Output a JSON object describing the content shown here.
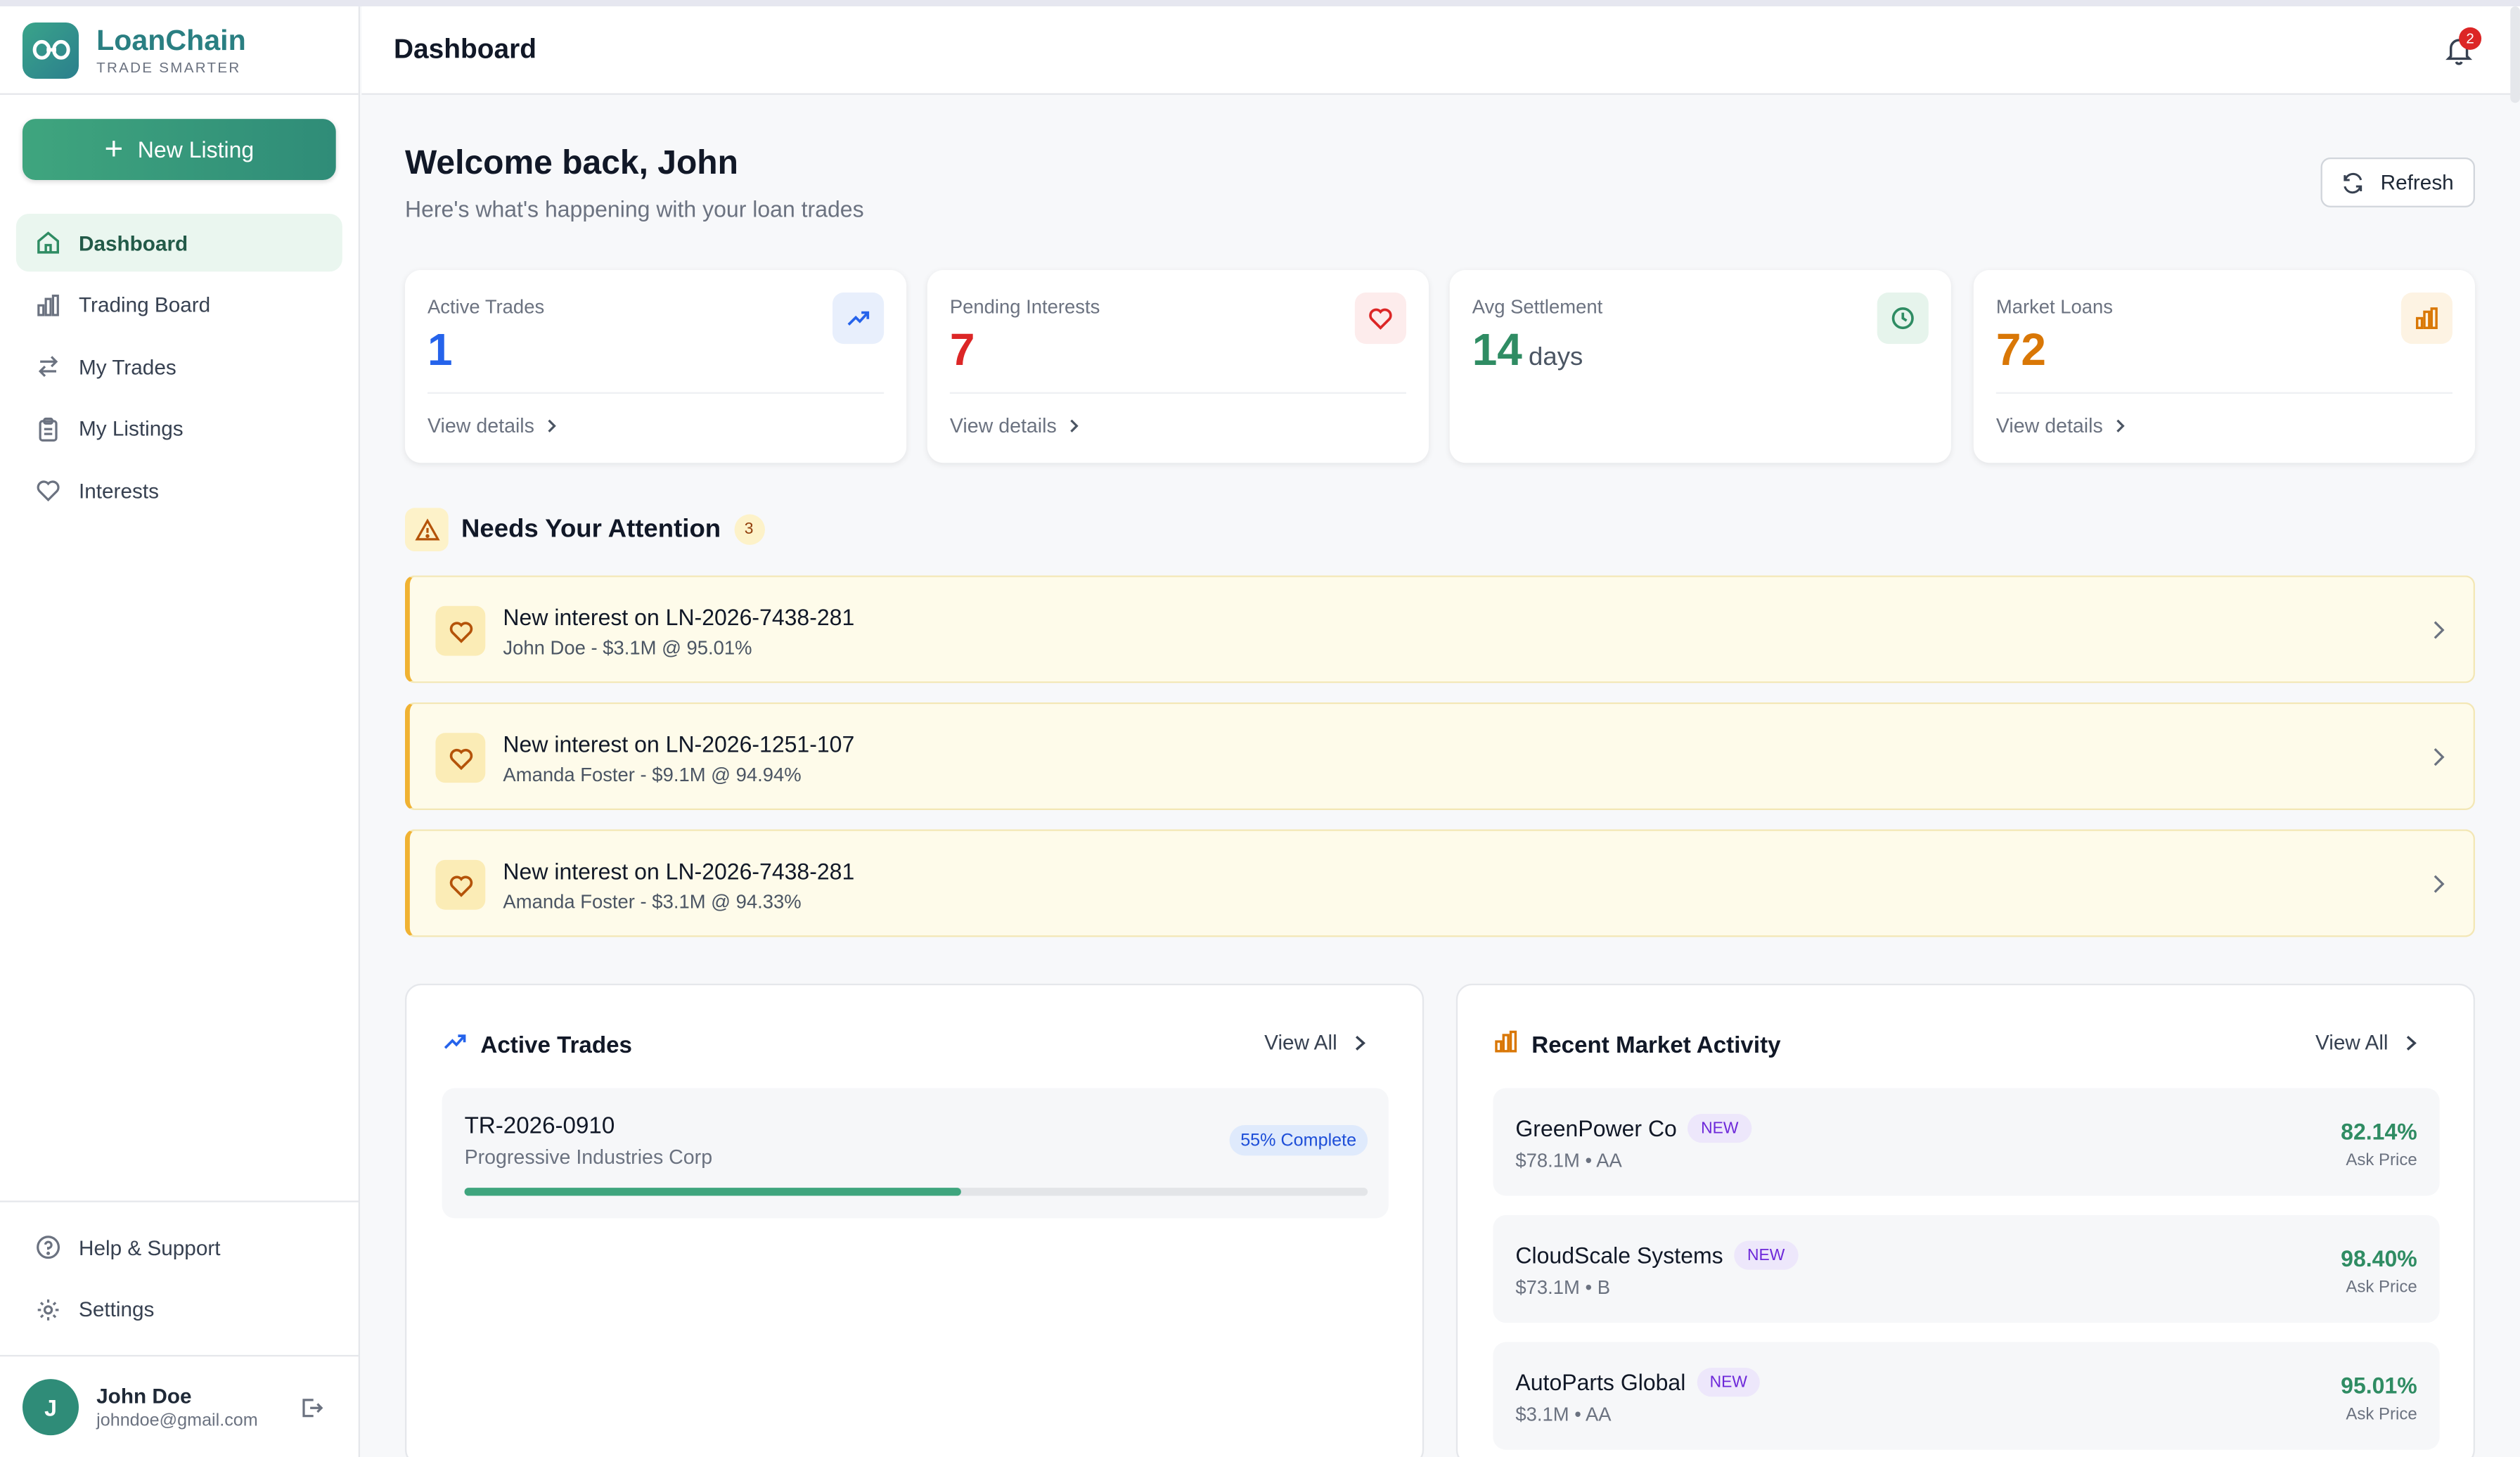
{
  "brand": {
    "name": "LoanChain",
    "tagline": "TRADE SMARTER"
  },
  "sidebar": {
    "new_listing_label": "New Listing",
    "items": [
      {
        "label": "Dashboard",
        "icon": "home-icon",
        "active": true
      },
      {
        "label": "Trading Board",
        "icon": "bar-chart-icon"
      },
      {
        "label": "My Trades",
        "icon": "swap-arrows-icon"
      },
      {
        "label": "My Listings",
        "icon": "clipboard-icon"
      },
      {
        "label": "Interests",
        "icon": "heart-icon"
      }
    ],
    "bottom_items": [
      {
        "label": "Help & Support",
        "icon": "help-circle-icon"
      },
      {
        "label": "Settings",
        "icon": "gear-icon"
      }
    ]
  },
  "user": {
    "initial": "J",
    "name": "John Doe",
    "email": "johndoe@gmail.com"
  },
  "header": {
    "title": "Dashboard",
    "notification_count": "2"
  },
  "welcome": {
    "title": "Welcome back, John",
    "subtitle": "Here's what's happening with your loan trades",
    "refresh_label": "Refresh"
  },
  "stats": [
    {
      "label": "Active Trades",
      "value": "1",
      "unit": "",
      "link": "View details",
      "color": "#2563eb",
      "icon": "trending-up-icon"
    },
    {
      "label": "Pending Interests",
      "value": "7",
      "unit": "",
      "link": "View details",
      "color": "#dc2626",
      "icon": "heart-icon"
    },
    {
      "label": "Avg Settlement",
      "value": "14",
      "unit": "days",
      "link": "",
      "color": "#2f8c63",
      "icon": "clock-icon"
    },
    {
      "label": "Market Loans",
      "value": "72",
      "unit": "",
      "link": "View details",
      "color": "#d97706",
      "icon": "bar-chart-icon"
    }
  ],
  "attention": {
    "title": "Needs Your Attention",
    "count": "3",
    "items": [
      {
        "title": "New interest on LN-2026-7438-281",
        "detail": "John Doe - $3.1M @ 95.01%"
      },
      {
        "title": "New interest on LN-2026-1251-107",
        "detail": "Amanda Foster - $9.1M @ 94.94%"
      },
      {
        "title": "New interest on LN-2026-7438-281",
        "detail": "Amanda Foster - $3.1M @ 94.33%"
      }
    ]
  },
  "active_trades": {
    "title": "Active Trades",
    "view_all": "View All",
    "trades": [
      {
        "id": "TR-2026-0910",
        "company": "Progressive Industries Corp",
        "badge": "55% Complete",
        "progress": 0.55
      }
    ]
  },
  "market_activity": {
    "title": "Recent Market Activity",
    "view_all": "View All",
    "items": [
      {
        "name": "GreenPower Co",
        "badge": "NEW",
        "meta": "$78.1M • AA",
        "price": "82.14%",
        "price_label": "Ask Price"
      },
      {
        "name": "CloudScale Systems",
        "badge": "NEW",
        "meta": "$73.1M • B",
        "price": "98.40%",
        "price_label": "Ask Price"
      },
      {
        "name": "AutoParts Global",
        "badge": "NEW",
        "meta": "$3.1M • AA",
        "price": "95.01%",
        "price_label": "Ask Price"
      }
    ]
  }
}
